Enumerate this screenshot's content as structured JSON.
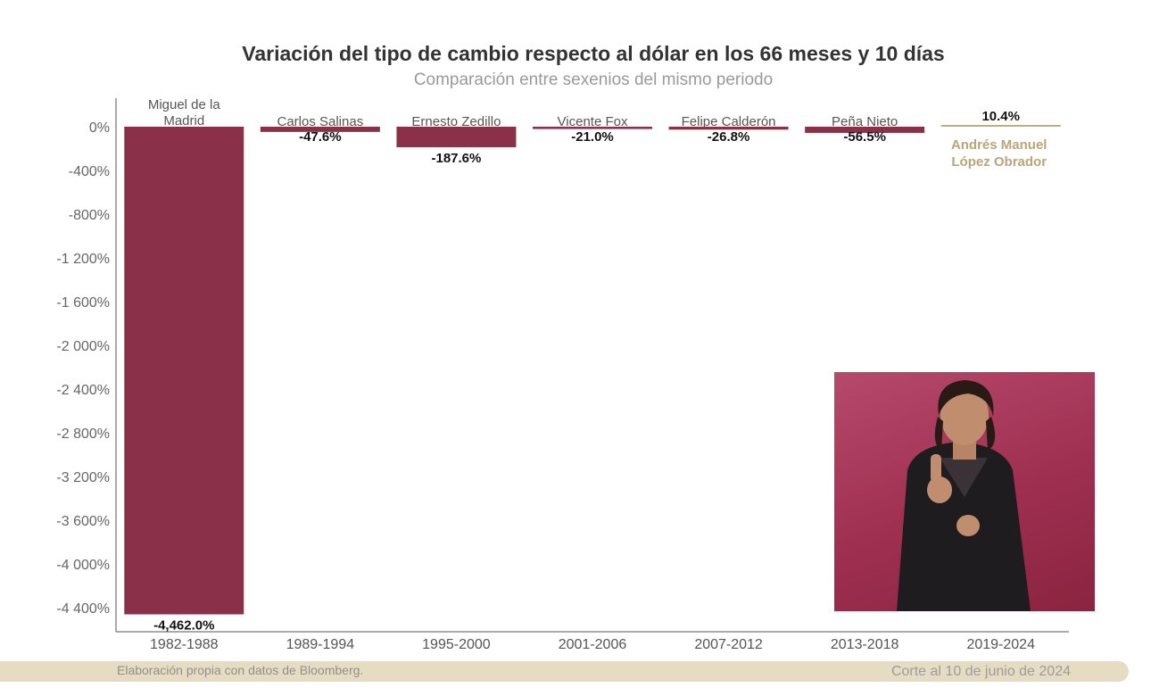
{
  "title": "Variación del tipo de cambio respecto al dólar en los 66 meses y 10 días",
  "subtitle": "Comparación entre sexenios del mismo periodo",
  "footer": {
    "source": "Elaboración propia con datos de Bloomberg.",
    "cutoff": "Corte al 10 de junio de 2024"
  },
  "colors": {
    "bar_negative": "#8b3049",
    "bar_positive": "#c3ad7c",
    "highlight_label": "#b8a57a",
    "footer_band": "#e6dcc2",
    "inset_background": "#a33356"
  },
  "chart_data": {
    "type": "bar",
    "title": "Variación del tipo de cambio respecto al dólar en los 66 meses y 10 días",
    "subtitle": "Comparación entre sexenios del mismo periodo",
    "categories": [
      "1982-1988",
      "1989-1994",
      "1995-2000",
      "2001-2006",
      "2007-2012",
      "2013-2018",
      "2019-2024"
    ],
    "presidents": [
      [
        "Miguel de la",
        "Madrid"
      ],
      [
        "Carlos Salinas"
      ],
      [
        "Ernesto Zedillo"
      ],
      [
        "Vicente Fox"
      ],
      [
        "Felipe Calderón"
      ],
      [
        "Peña Nieto"
      ],
      [
        "Andrés Manuel",
        "López Obrador"
      ]
    ],
    "values": [
      -4462.0,
      -47.6,
      -187.6,
      -21.0,
      -26.8,
      -56.5,
      10.4
    ],
    "value_labels": [
      "-4,462.0%",
      "-47.6%",
      "-187.6%",
      "-21.0%",
      "-26.8%",
      "-56.5%",
      "10.4%"
    ],
    "highlight_index": 6,
    "yticks": [
      0,
      -400,
      -800,
      -1200,
      -1600,
      -2000,
      -2400,
      -2800,
      -3200,
      -3600,
      -4000,
      -4400
    ],
    "ytick_labels": [
      "0%",
      "-400%",
      "-800%",
      "-1 200%",
      "-1 600%",
      "-2 000%",
      "-2 400%",
      "-2 800%",
      "-3 200%",
      "-3 600%",
      "-4 000%",
      "-4 400%"
    ],
    "ylim": [
      -4650,
      250
    ],
    "grid": false,
    "legend": "none"
  }
}
